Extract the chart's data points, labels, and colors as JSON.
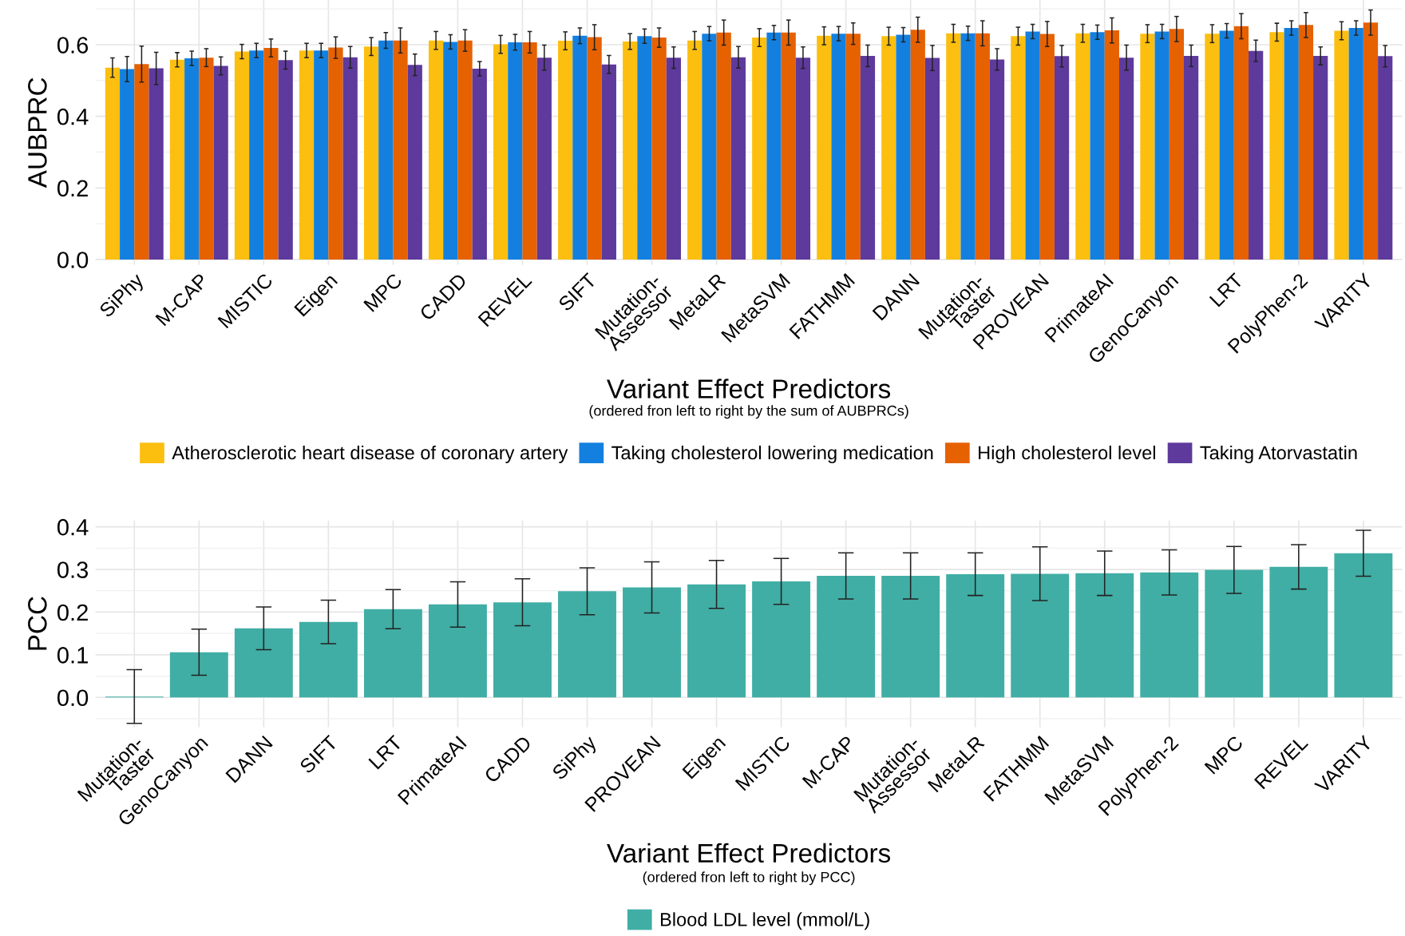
{
  "chart_data": [
    {
      "type": "bar",
      "ylabel": "AUBPRC",
      "xlabel": "Variant Effect Predictors",
      "annotations": [
        "(ordered fron left to right by the sum of AUBPRCs)"
      ],
      "categories": [
        "SiPhy",
        "M-CAP",
        "MISTIC",
        "Eigen",
        "MPC",
        "CADD",
        "REVEL",
        "SIFT",
        "Mutation-\nAssessor",
        "MetaLR",
        "MetaSVM",
        "FATHMM",
        "DANN",
        "Mutation-\nTaster",
        "PROVEAN",
        "PrimateAI",
        "GenoCanyon",
        "LRT",
        "PolyPhen-2",
        "VARITY"
      ],
      "series": [
        {
          "name": "Atherosclerotic heart disease of coronary artery",
          "color": "#fcbf0f",
          "values": [
            0.536,
            0.558,
            0.581,
            0.584,
            0.595,
            0.612,
            0.601,
            0.611,
            0.609,
            0.612,
            0.62,
            0.625,
            0.624,
            0.632,
            0.624,
            0.632,
            0.631,
            0.631,
            0.635,
            0.639
          ],
          "errors": [
            0.027,
            0.02,
            0.02,
            0.02,
            0.025,
            0.025,
            0.025,
            0.025,
            0.022,
            0.025,
            0.025,
            0.025,
            0.025,
            0.025,
            0.025,
            0.025,
            0.025,
            0.025,
            0.025,
            0.025
          ]
        },
        {
          "name": "Taking cholesterol lowering medication",
          "color": "#1380e0",
          "values": [
            0.532,
            0.562,
            0.584,
            0.584,
            0.612,
            0.608,
            0.607,
            0.625,
            0.624,
            0.631,
            0.634,
            0.631,
            0.628,
            0.632,
            0.637,
            0.635,
            0.637,
            0.639,
            0.647,
            0.647
          ],
          "errors": [
            0.035,
            0.02,
            0.02,
            0.02,
            0.022,
            0.02,
            0.022,
            0.022,
            0.02,
            0.02,
            0.02,
            0.02,
            0.02,
            0.02,
            0.02,
            0.02,
            0.02,
            0.02,
            0.02,
            0.02
          ]
        },
        {
          "name": "High cholesterol level",
          "color": "#e66100",
          "values": [
            0.546,
            0.564,
            0.591,
            0.592,
            0.612,
            0.612,
            0.607,
            0.621,
            0.62,
            0.634,
            0.634,
            0.631,
            0.642,
            0.632,
            0.63,
            0.64,
            0.644,
            0.652,
            0.655,
            0.662
          ],
          "errors": [
            0.05,
            0.025,
            0.025,
            0.03,
            0.035,
            0.03,
            0.03,
            0.035,
            0.027,
            0.035,
            0.035,
            0.03,
            0.035,
            0.035,
            0.035,
            0.035,
            0.035,
            0.035,
            0.035,
            0.035
          ]
        },
        {
          "name": "Taking Atorvastatin",
          "color": "#5e3a9c",
          "values": [
            0.534,
            0.541,
            0.557,
            0.565,
            0.544,
            0.533,
            0.564,
            0.545,
            0.564,
            0.565,
            0.564,
            0.569,
            0.563,
            0.559,
            0.568,
            0.564,
            0.569,
            0.583,
            0.569,
            0.568
          ],
          "errors": [
            0.045,
            0.025,
            0.025,
            0.03,
            0.03,
            0.02,
            0.035,
            0.025,
            0.03,
            0.03,
            0.03,
            0.03,
            0.035,
            0.03,
            0.03,
            0.035,
            0.03,
            0.03,
            0.025,
            0.03
          ]
        }
      ],
      "ylim": [
        -0.015,
        0.725
      ],
      "yticks": [
        {
          "value": 0,
          "label": "0.0"
        },
        0.2,
        0.4,
        0.6
      ],
      "grid": true,
      "legend": "bottom"
    },
    {
      "type": "bar",
      "ylabel": "PCC",
      "xlabel": "Variant Effect Predictors",
      "annotations": [
        "(ordered fron left to right by PCC)"
      ],
      "categories": [
        "Mutation-\nTaster",
        "GenoCanyon",
        "DANN",
        "SIFT",
        "LRT",
        "PrimateAI",
        "CADD",
        "SiPhy",
        "PROVEAN",
        "Eigen",
        "MISTIC",
        "M-CAP",
        "Mutation-\nAssessor",
        "MetaLR",
        "FATHMM",
        "MetaSVM",
        "PolyPhen-2",
        "MPC",
        "REVEL",
        "VARITY"
      ],
      "series": [
        {
          "name": "Blood LDL level (mmol/L)",
          "color": "#40aea5",
          "values": [
            0.002,
            0.106,
            0.162,
            0.177,
            0.207,
            0.218,
            0.223,
            0.249,
            0.258,
            0.265,
            0.272,
            0.285,
            0.285,
            0.289,
            0.29,
            0.291,
            0.293,
            0.299,
            0.306,
            0.338
          ],
          "errors": [
            0.063,
            0.054,
            0.05,
            0.051,
            0.046,
            0.053,
            0.055,
            0.055,
            0.06,
            0.056,
            0.054,
            0.054,
            0.054,
            0.05,
            0.063,
            0.052,
            0.053,
            0.055,
            0.052,
            0.054
          ]
        }
      ],
      "ylim": [
        -0.07,
        0.415
      ],
      "yticks": [
        {
          "value": 0,
          "label": "0.0"
        },
        0.1,
        0.2,
        0.3,
        0.4
      ],
      "grid": true,
      "legend": "bottom"
    }
  ]
}
